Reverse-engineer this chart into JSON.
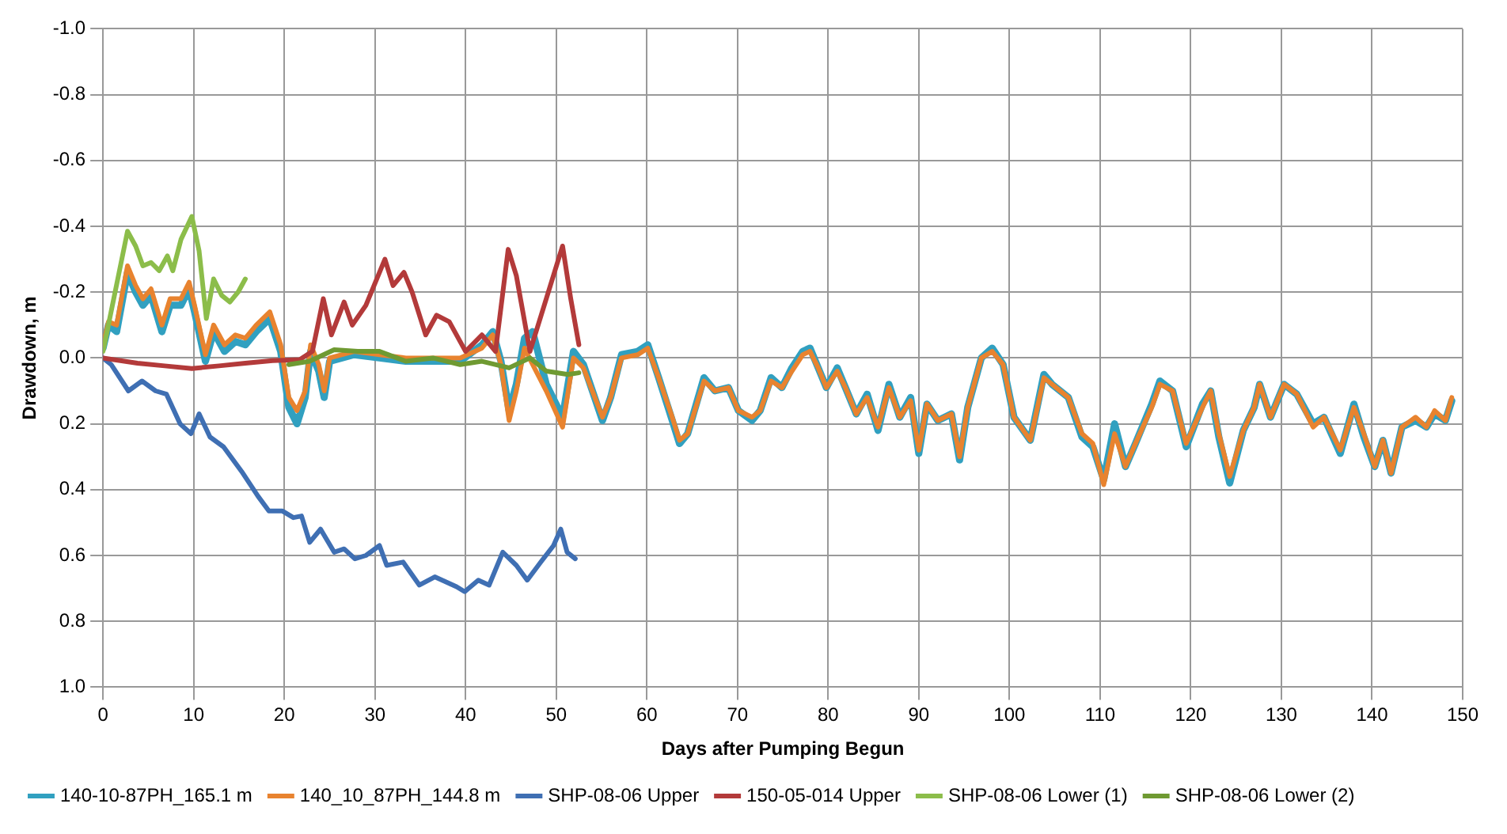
{
  "chart_data": {
    "type": "line",
    "xlabel": "Days after Pumping Begun",
    "ylabel": "Drawdown, m",
    "xlim": [
      0,
      150
    ],
    "xticks": [
      0,
      10,
      20,
      30,
      40,
      50,
      60,
      70,
      80,
      90,
      100,
      110,
      120,
      130,
      140,
      150
    ],
    "ylim": [
      1.0,
      -1.0
    ],
    "yticks": [
      {
        "value": -1,
        "label": "-1.0"
      },
      {
        "value": -0.8,
        "label": "-0.8"
      },
      {
        "value": -0.6,
        "label": "-0.6"
      },
      {
        "value": -0.4,
        "label": "-0.4"
      },
      {
        "value": -0.2,
        "label": "-0.2"
      },
      {
        "value": 0,
        "label": "0.0"
      },
      {
        "value": 0.2,
        "label": "0.2"
      },
      {
        "value": 0.4,
        "label": "0.4"
      },
      {
        "value": 0.6,
        "label": "0.6"
      },
      {
        "value": 0.8,
        "label": "0.8"
      },
      {
        "value": 1,
        "label": "1.0"
      }
    ],
    "grid": true,
    "legend": "bottom",
    "marker": "none",
    "line_style": "solid",
    "series": [
      {
        "name": "140-10-87PH_165.1 m",
        "color": "#31a0c0",
        "x": [
          0,
          0.6,
          1.5,
          2.7,
          3.6,
          4.4,
          5.3,
          6.5,
          7.4,
          8.6,
          9.5,
          10.1,
          11.3,
          12.2,
          13.4,
          14.6,
          15.7,
          16.9,
          18.4,
          19.6,
          20.5,
          21.4,
          22.3,
          22.9,
          23.8,
          24.4,
          25,
          27.7,
          30.5,
          33.4,
          36.4,
          39.4,
          41.8,
          43,
          43.9,
          44.8,
          45.6,
          46.5,
          47.4,
          48.9,
          50.7,
          51.9,
          53,
          55.1,
          56,
          57.2,
          59,
          60.1,
          61.3,
          62.8,
          63.6,
          64.5,
          66.3,
          67.5,
          69,
          70.1,
          71.6,
          72.5,
          73.7,
          74.9,
          76,
          77.2,
          78,
          78.9,
          79.8,
          81,
          81.9,
          83.1,
          84.3,
          85.5,
          86.7,
          87.9,
          89.1,
          90,
          90.9,
          92.1,
          93.6,
          94.5,
          95.4,
          96.9,
          98.1,
          99.3,
          100.5,
          102.3,
          103.8,
          104.7,
          106.5,
          108,
          109.2,
          110.4,
          111.6,
          112.8,
          113.9,
          115.7,
          116.6,
          118,
          119.5,
          121.3,
          122.2,
          123.1,
          124.3,
          125.8,
          127,
          127.6,
          128.8,
          130.3,
          131.7,
          133.5,
          134.7,
          136.5,
          138,
          139.1,
          140.3,
          141.2,
          142.1,
          143.3,
          144.8,
          146,
          146.9,
          148.1,
          148.8
        ],
        "values": [
          -0.03,
          -0.1,
          -0.08,
          -0.26,
          -0.2,
          -0.16,
          -0.19,
          -0.08,
          -0.16,
          -0.16,
          -0.21,
          -0.14,
          0.01,
          -0.08,
          -0.02,
          -0.05,
          -0.04,
          -0.08,
          -0.12,
          -0.02,
          0.15,
          0.2,
          0.12,
          -0.02,
          0.04,
          0.12,
          0.01,
          -0.01,
          0,
          0.01,
          0.01,
          0.01,
          -0.04,
          -0.08,
          0.01,
          0.16,
          0.08,
          -0.06,
          -0.08,
          0.08,
          0.18,
          -0.02,
          0.02,
          0.19,
          0.12,
          -0.01,
          -0.02,
          -0.04,
          0.06,
          0.19,
          0.26,
          0.23,
          0.06,
          0.1,
          0.09,
          0.16,
          0.19,
          0.16,
          0.06,
          0.09,
          0.03,
          -0.02,
          -0.03,
          0.03,
          0.09,
          0.03,
          0.09,
          0.17,
          0.11,
          0.22,
          0.08,
          0.18,
          0.12,
          0.29,
          0.14,
          0.19,
          0.17,
          0.31,
          0.15,
          0,
          -0.03,
          0.02,
          0.18,
          0.25,
          0.05,
          0.08,
          0.12,
          0.24,
          0.27,
          0.37,
          0.2,
          0.33,
          0.26,
          0.14,
          0.07,
          0.1,
          0.27,
          0.14,
          0.1,
          0.24,
          0.38,
          0.22,
          0.15,
          0.08,
          0.18,
          0.08,
          0.11,
          0.2,
          0.18,
          0.29,
          0.14,
          0.24,
          0.33,
          0.25,
          0.35,
          0.21,
          0.19,
          0.21,
          0.17,
          0.19,
          0.13
        ]
      },
      {
        "name": "140_10_87PH_144.8 m",
        "color": "#e8832f",
        "x": [
          0,
          0.6,
          1.5,
          2.7,
          3.6,
          4.4,
          5.3,
          6.5,
          7.4,
          8.6,
          9.5,
          10.1,
          11.3,
          12.2,
          13.4,
          14.6,
          15.7,
          16.9,
          18.4,
          19.6,
          20.5,
          21.4,
          22.3,
          22.9,
          23.8,
          24.4,
          25,
          27.7,
          30.5,
          33.4,
          36.4,
          39.4,
          41.8,
          43,
          43.9,
          44.8,
          45.6,
          46.5,
          47.4,
          48.9,
          50.7,
          51.9,
          53,
          55.1,
          56,
          57.2,
          59,
          60.1,
          61.3,
          62.8,
          63.6,
          64.5,
          66.3,
          67.5,
          69,
          70.1,
          71.6,
          72.5,
          73.7,
          74.9,
          76,
          77.2,
          78,
          78.9,
          79.8,
          81,
          81.9,
          83.1,
          84.3,
          85.5,
          86.7,
          87.9,
          89.1,
          90,
          90.9,
          92.1,
          93.6,
          94.5,
          95.4,
          96.9,
          98.1,
          99.3,
          100.5,
          102.3,
          103.8,
          104.7,
          106.5,
          108,
          109.2,
          110.4,
          111.6,
          112.8,
          113.9,
          115.7,
          116.6,
          118,
          119.5,
          121.3,
          122.2,
          123.1,
          124.3,
          125.8,
          127,
          127.6,
          128.8,
          130.3,
          131.7,
          133.5,
          134.7,
          136.5,
          138,
          139.1,
          140.3,
          141.2,
          142.1,
          143.3,
          144.8,
          146,
          146.9,
          148.1,
          148.8
        ],
        "values": [
          -0.04,
          -0.11,
          -0.1,
          -0.28,
          -0.22,
          -0.18,
          -0.21,
          -0.1,
          -0.18,
          -0.18,
          -0.23,
          -0.16,
          -0.01,
          -0.1,
          -0.04,
          -0.07,
          -0.06,
          -0.1,
          -0.14,
          -0.04,
          0.12,
          0.16,
          0.1,
          -0.04,
          0.02,
          0.1,
          0,
          -0.02,
          -0.01,
          0,
          0,
          0,
          -0.03,
          -0.07,
          0.02,
          0.19,
          0.1,
          -0.03,
          0.02,
          0.1,
          0.21,
          0,
          0.03,
          0.18,
          0.12,
          0,
          -0.01,
          -0.03,
          0.06,
          0.18,
          0.25,
          0.23,
          0.07,
          0.1,
          0.09,
          0.16,
          0.18,
          0.16,
          0.07,
          0.09,
          0.04,
          -0.01,
          -0.02,
          0.03,
          0.09,
          0.04,
          0.09,
          0.17,
          0.12,
          0.21,
          0.09,
          0.18,
          0.13,
          0.28,
          0.14,
          0.19,
          0.17,
          0.3,
          0.15,
          0,
          -0.02,
          0.02,
          0.18,
          0.25,
          0.06,
          0.08,
          0.12,
          0.23,
          0.26,
          0.385,
          0.23,
          0.33,
          0.26,
          0.15,
          0.08,
          0.1,
          0.26,
          0.15,
          0.1,
          0.23,
          0.36,
          0.22,
          0.15,
          0.08,
          0.18,
          0.08,
          0.11,
          0.21,
          0.18,
          0.28,
          0.15,
          0.23,
          0.33,
          0.25,
          0.35,
          0.21,
          0.18,
          0.21,
          0.16,
          0.19,
          0.12
        ]
      },
      {
        "name": "SHP-08-06 Upper",
        "color": "#3f6fb3",
        "x": [
          0,
          0.9,
          2.8,
          4.3,
          5.8,
          7,
          8.5,
          9.7,
          10.6,
          11.8,
          13.3,
          15.3,
          17.1,
          18.3,
          19.8,
          21,
          21.9,
          22.8,
          24,
          25.5,
          26.6,
          27.8,
          29,
          30.5,
          31.3,
          33.1,
          34.9,
          36.6,
          39,
          39.9,
          41.4,
          42.6,
          44.1,
          45.6,
          46.8,
          48.3,
          49.7,
          50.5,
          51.2,
          52.1
        ],
        "values": [
          0,
          0.02,
          0.1,
          0.07,
          0.1,
          0.11,
          0.2,
          0.23,
          0.17,
          0.24,
          0.27,
          0.345,
          0.42,
          0.465,
          0.465,
          0.485,
          0.48,
          0.56,
          0.52,
          0.59,
          0.58,
          0.61,
          0.6,
          0.57,
          0.63,
          0.62,
          0.69,
          0.665,
          0.695,
          0.71,
          0.675,
          0.69,
          0.59,
          0.63,
          0.675,
          0.62,
          0.57,
          0.52,
          0.59,
          0.61
        ]
      },
      {
        "name": "150-05-014 Upper",
        "color": "#b33a3a",
        "x": [
          0,
          3.8,
          6.8,
          9.8,
          12.8,
          15.7,
          18.7,
          21.7,
          23.1,
          24.3,
          25.2,
          26.6,
          27.5,
          29,
          31.1,
          32,
          33.2,
          34.1,
          35.6,
          36.8,
          38.2,
          40,
          41.8,
          43.3,
          44.7,
          45.6,
          47.1,
          48.9,
          50.7,
          51.6,
          52.5
        ],
        "values": [
          0,
          0.016,
          0.024,
          0.032,
          0.024,
          0.016,
          0.008,
          0.005,
          -0.02,
          -0.18,
          -0.07,
          -0.17,
          -0.1,
          -0.16,
          -0.3,
          -0.22,
          -0.26,
          -0.2,
          -0.07,
          -0.13,
          -0.11,
          -0.02,
          -0.07,
          -0.02,
          -0.33,
          -0.25,
          -0.02,
          -0.18,
          -0.34,
          -0.18,
          -0.04
        ]
      },
      {
        "name": "SHP-08-06 Lower (1)",
        "color": "#8cbd4a",
        "x": [
          0,
          2.7,
          3.6,
          4.4,
          5.3,
          6.2,
          7.1,
          7.7,
          8.6,
          9.8,
          10.6,
          11.4,
          12.2,
          13.1,
          14,
          14.9,
          15.7
        ],
        "values": [
          -0.02,
          -0.385,
          -0.34,
          -0.28,
          -0.29,
          -0.265,
          -0.31,
          -0.265,
          -0.36,
          -0.43,
          -0.325,
          -0.12,
          -0.24,
          -0.19,
          -0.17,
          -0.2,
          -0.24
        ]
      },
      {
        "name": "SHP-08-06 Lower (2)",
        "color": "#6f9a32",
        "x": [
          20.5,
          22.8,
          25.5,
          28.1,
          30.5,
          33.4,
          36.4,
          39.4,
          41.8,
          44.8,
          47.1,
          48.9,
          51.3,
          52.5
        ],
        "values": [
          0.02,
          0.01,
          -0.025,
          -0.02,
          -0.02,
          0.01,
          0,
          0.02,
          0.01,
          0.03,
          0,
          0.04,
          0.05,
          0.045
        ]
      }
    ]
  }
}
